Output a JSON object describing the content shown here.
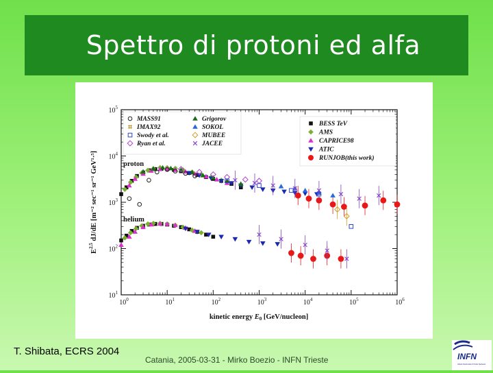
{
  "slide": {
    "title": "Spettro di protoni ed alfa",
    "credit": "T. Shibata, ECRS 2004",
    "footer": "Catania, 2005-03-31 - Mirko Boezio - INFN Trieste",
    "logo_text": "INFN",
    "logo_subtext": "Istituto Nazionale di Fisica Nucleare",
    "title_bar_color": "#1f8a1f"
  },
  "chart_data": {
    "type": "scatter",
    "xlabel_main": "kinetic energy",
    "xlabel_var": "E",
    "xlabel_sub": "0",
    "xlabel_unit": "[GeV/nucleon]",
    "ylabel_main": "E",
    "ylabel_rest": "dJ/dE",
    "ylabel_unit": "[m⁻² sec⁻¹ sr⁻¹ GeV¹·⁵]",
    "x_scale": "log",
    "y_scale": "log",
    "xlim": [
      1,
      1000000
    ],
    "ylim": [
      10,
      100000
    ],
    "x_ticks": [
      {
        "value": 1,
        "mantissa": "10",
        "exp": "0"
      },
      {
        "value": 10,
        "mantissa": "10",
        "exp": "1"
      },
      {
        "value": 100,
        "mantissa": "10",
        "exp": "2"
      },
      {
        "value": 1000,
        "mantissa": "10",
        "exp": "3"
      },
      {
        "value": 10000,
        "mantissa": "10",
        "exp": "4"
      },
      {
        "value": 100000,
        "mantissa": "10",
        "exp": "5"
      },
      {
        "value": 1000000,
        "mantissa": "10",
        "exp": "6"
      }
    ],
    "y_ticks": [
      {
        "value": 10,
        "mantissa": "10",
        "exp": "1"
      },
      {
        "value": 100,
        "mantissa": "10",
        "exp": "2"
      },
      {
        "value": 1000,
        "mantissa": "10",
        "exp": "3"
      },
      {
        "value": 10000,
        "mantissa": "10",
        "exp": "4"
      },
      {
        "value": 100000,
        "mantissa": "10",
        "exp": "5"
      }
    ],
    "annotations": [
      "proton",
      "helium"
    ],
    "legend_left": [
      {
        "label": "MASS91",
        "marker": "circle-open",
        "color": "#222222"
      },
      {
        "label": "IMAX92",
        "marker": "hash",
        "color": "#c89020"
      },
      {
        "label": "Swody et al.",
        "marker": "square-open",
        "color": "#2a44c8"
      },
      {
        "label": "Ryan et al.",
        "marker": "diamond-open",
        "color": "#b040c8"
      },
      {
        "label": "Grigorov",
        "marker": "triangle-filled",
        "color": "#1a6a1a"
      },
      {
        "label": "SOKOL",
        "marker": "triangle-filled",
        "color": "#2a6ad8"
      },
      {
        "label": "MUBEE",
        "marker": "diamond-open",
        "color": "#d89a20"
      },
      {
        "label": "JACEE",
        "marker": "cross-open",
        "color": "#8040c8"
      }
    ],
    "legend_right": [
      {
        "label": "BESS TeV",
        "marker": "square-filled",
        "color": "#111111"
      },
      {
        "label": "AMS",
        "marker": "diamond-filled",
        "color": "#7ab030"
      },
      {
        "label": "CAPRICE98",
        "marker": "triangle-filled",
        "color": "#d830c8"
      },
      {
        "label": "ATIC",
        "marker": "triangle-down-filled",
        "color": "#1a2ab0"
      },
      {
        "label": "RUNJOB(this work)",
        "marker": "circle-filled",
        "color": "#e81818"
      }
    ],
    "series": [
      {
        "name": "BESS TeV",
        "marker": "square-filled",
        "color": "#111111",
        "x": [
          1,
          1.3,
          1.7,
          2.2,
          3,
          4,
          5.5,
          7.5,
          10,
          14,
          20,
          30,
          45,
          70,
          100,
          150,
          250,
          400
        ],
        "y": [
          1500,
          2100,
          2900,
          3700,
          4400,
          4900,
          5200,
          5300,
          5200,
          5000,
          4700,
          4300,
          3900,
          3500,
          3200,
          2900,
          2500,
          2100
        ]
      },
      {
        "name": "AMS",
        "marker": "diamond-filled",
        "color": "#7ab030",
        "x": [
          1.2,
          1.6,
          2.1,
          2.8,
          3.8,
          5,
          7,
          10,
          15,
          22,
          35,
          55,
          90,
          150
        ],
        "y": [
          1900,
          2700,
          3500,
          4300,
          4900,
          5300,
          5600,
          5600,
          5400,
          5000,
          4500,
          4000,
          3500,
          3000
        ]
      },
      {
        "name": "CAPRICE98",
        "marker": "triangle-filled",
        "color": "#d830c8",
        "x": [
          1.5,
          2,
          3,
          4.5,
          7,
          10,
          15,
          25,
          40,
          70,
          120,
          200
        ],
        "y": [
          2300,
          3200,
          4100,
          4800,
          5200,
          5300,
          5000,
          4600,
          4100,
          3600,
          3100,
          2600
        ]
      },
      {
        "name": "ATIC",
        "marker": "triangle-down-filled",
        "color": "#1a2ab0",
        "x": [
          30,
          50,
          90,
          150,
          250,
          400,
          700,
          1200,
          2000,
          3500,
          6000,
          10000,
          18000
        ],
        "y": [
          4300,
          3800,
          3300,
          2900,
          2600,
          2300,
          2100,
          1900,
          1800,
          1700,
          1600,
          1550,
          1500
        ]
      },
      {
        "name": "RUNJOB(this work)",
        "marker": "circle-filled",
        "color": "#e81818",
        "x": [
          7000,
          12000,
          20000,
          40000,
          70000,
          200000,
          500000,
          1000000
        ],
        "y": [
          1400,
          1200,
          1100,
          900,
          800,
          850,
          1100,
          900
        ]
      },
      {
        "name": "Grigorov",
        "marker": "triangle-filled",
        "color": "#1a6a1a",
        "x": [
          3,
          5,
          8,
          12,
          20,
          35,
          60,
          100,
          200,
          400
        ],
        "y": [
          4600,
          5300,
          5600,
          5400,
          5000,
          4400,
          3800,
          3400,
          2900,
          2500
        ]
      },
      {
        "name": "SOKOL",
        "marker": "triangle-filled",
        "color": "#2a6ad8",
        "x": [
          3000,
          6000,
          10000,
          20000,
          40000
        ],
        "y": [
          2200,
          2000,
          1800,
          1600,
          1400
        ]
      },
      {
        "name": "JACEE",
        "marker": "cross-open",
        "color": "#8040c8",
        "x": [
          300,
          800,
          2000,
          6000,
          20000,
          60000,
          150000,
          400000
        ],
        "y": [
          3000,
          2600,
          2300,
          2000,
          1800,
          1500,
          1200,
          1400
        ]
      },
      {
        "name": "MASS91",
        "marker": "circle-open",
        "color": "#222222",
        "x": [
          1.5,
          2.5,
          4,
          6,
          10,
          15,
          25,
          40
        ],
        "y": [
          1200,
          900,
          3000,
          4500,
          5100,
          4700,
          4200,
          3700
        ]
      },
      {
        "name": "Ryan et al.",
        "marker": "diamond-open",
        "color": "#b040c8",
        "x": [
          20,
          50,
          100,
          200,
          500,
          1000
        ],
        "y": [
          5200,
          4500,
          4000,
          3500,
          3100,
          2900
        ]
      },
      {
        "name": "BESS TeV",
        "marker": "square-filled",
        "color": "#111111",
        "x": [
          1,
          1.3,
          1.7,
          2.2,
          3,
          4,
          5.5,
          7.5,
          10,
          14,
          20,
          30,
          45,
          70,
          100
        ],
        "y": [
          150,
          190,
          240,
          280,
          310,
          330,
          340,
          340,
          330,
          310,
          290,
          260,
          230,
          200,
          180
        ]
      },
      {
        "name": "AMS",
        "marker": "diamond-filled",
        "color": "#7ab030",
        "x": [
          1.2,
          1.6,
          2.1,
          2.8,
          3.8,
          5,
          7,
          10,
          15,
          22,
          35,
          55
        ],
        "y": [
          170,
          220,
          270,
          310,
          340,
          350,
          350,
          340,
          320,
          290,
          250,
          220
        ]
      },
      {
        "name": "CAPRICE98",
        "marker": "triangle-filled",
        "color": "#d830c8",
        "x": [
          1,
          1.5,
          2,
          3,
          4.5,
          7,
          10,
          15,
          25,
          40
        ],
        "y": [
          120,
          180,
          230,
          290,
          330,
          345,
          340,
          320,
          280,
          240
        ]
      },
      {
        "name": "ATIC",
        "marker": "triangle-down-filled",
        "color": "#1a2ab0",
        "x": [
          25,
          45,
          80,
          150,
          300,
          600,
          1200,
          2500
        ],
        "y": [
          270,
          230,
          200,
          180,
          160,
          140,
          130,
          125
        ]
      },
      {
        "name": "RUNJOB(this work)",
        "marker": "circle-filled",
        "color": "#e81818",
        "x": [
          5000,
          8000,
          15000,
          30000,
          60000
        ],
        "y": [
          80,
          70,
          60,
          70,
          60
        ]
      },
      {
        "name": "JACEE",
        "marker": "cross-open",
        "color": "#8040c8",
        "x": [
          1000,
          3000,
          10000,
          30000,
          80000
        ],
        "y": [
          200,
          160,
          120,
          90,
          60
        ]
      },
      {
        "name": "MUBEE",
        "marker": "diamond-open",
        "color": "#d89a20",
        "x": [
          50000,
          80000
        ],
        "y": [
          700,
          500
        ]
      },
      {
        "name": "Swody et al.",
        "marker": "square-open",
        "color": "#2a44c8",
        "x": [
          200,
          1000,
          5000,
          20000,
          100000
        ],
        "y": [
          2900,
          2300,
          1800,
          1500,
          300
        ]
      }
    ]
  }
}
